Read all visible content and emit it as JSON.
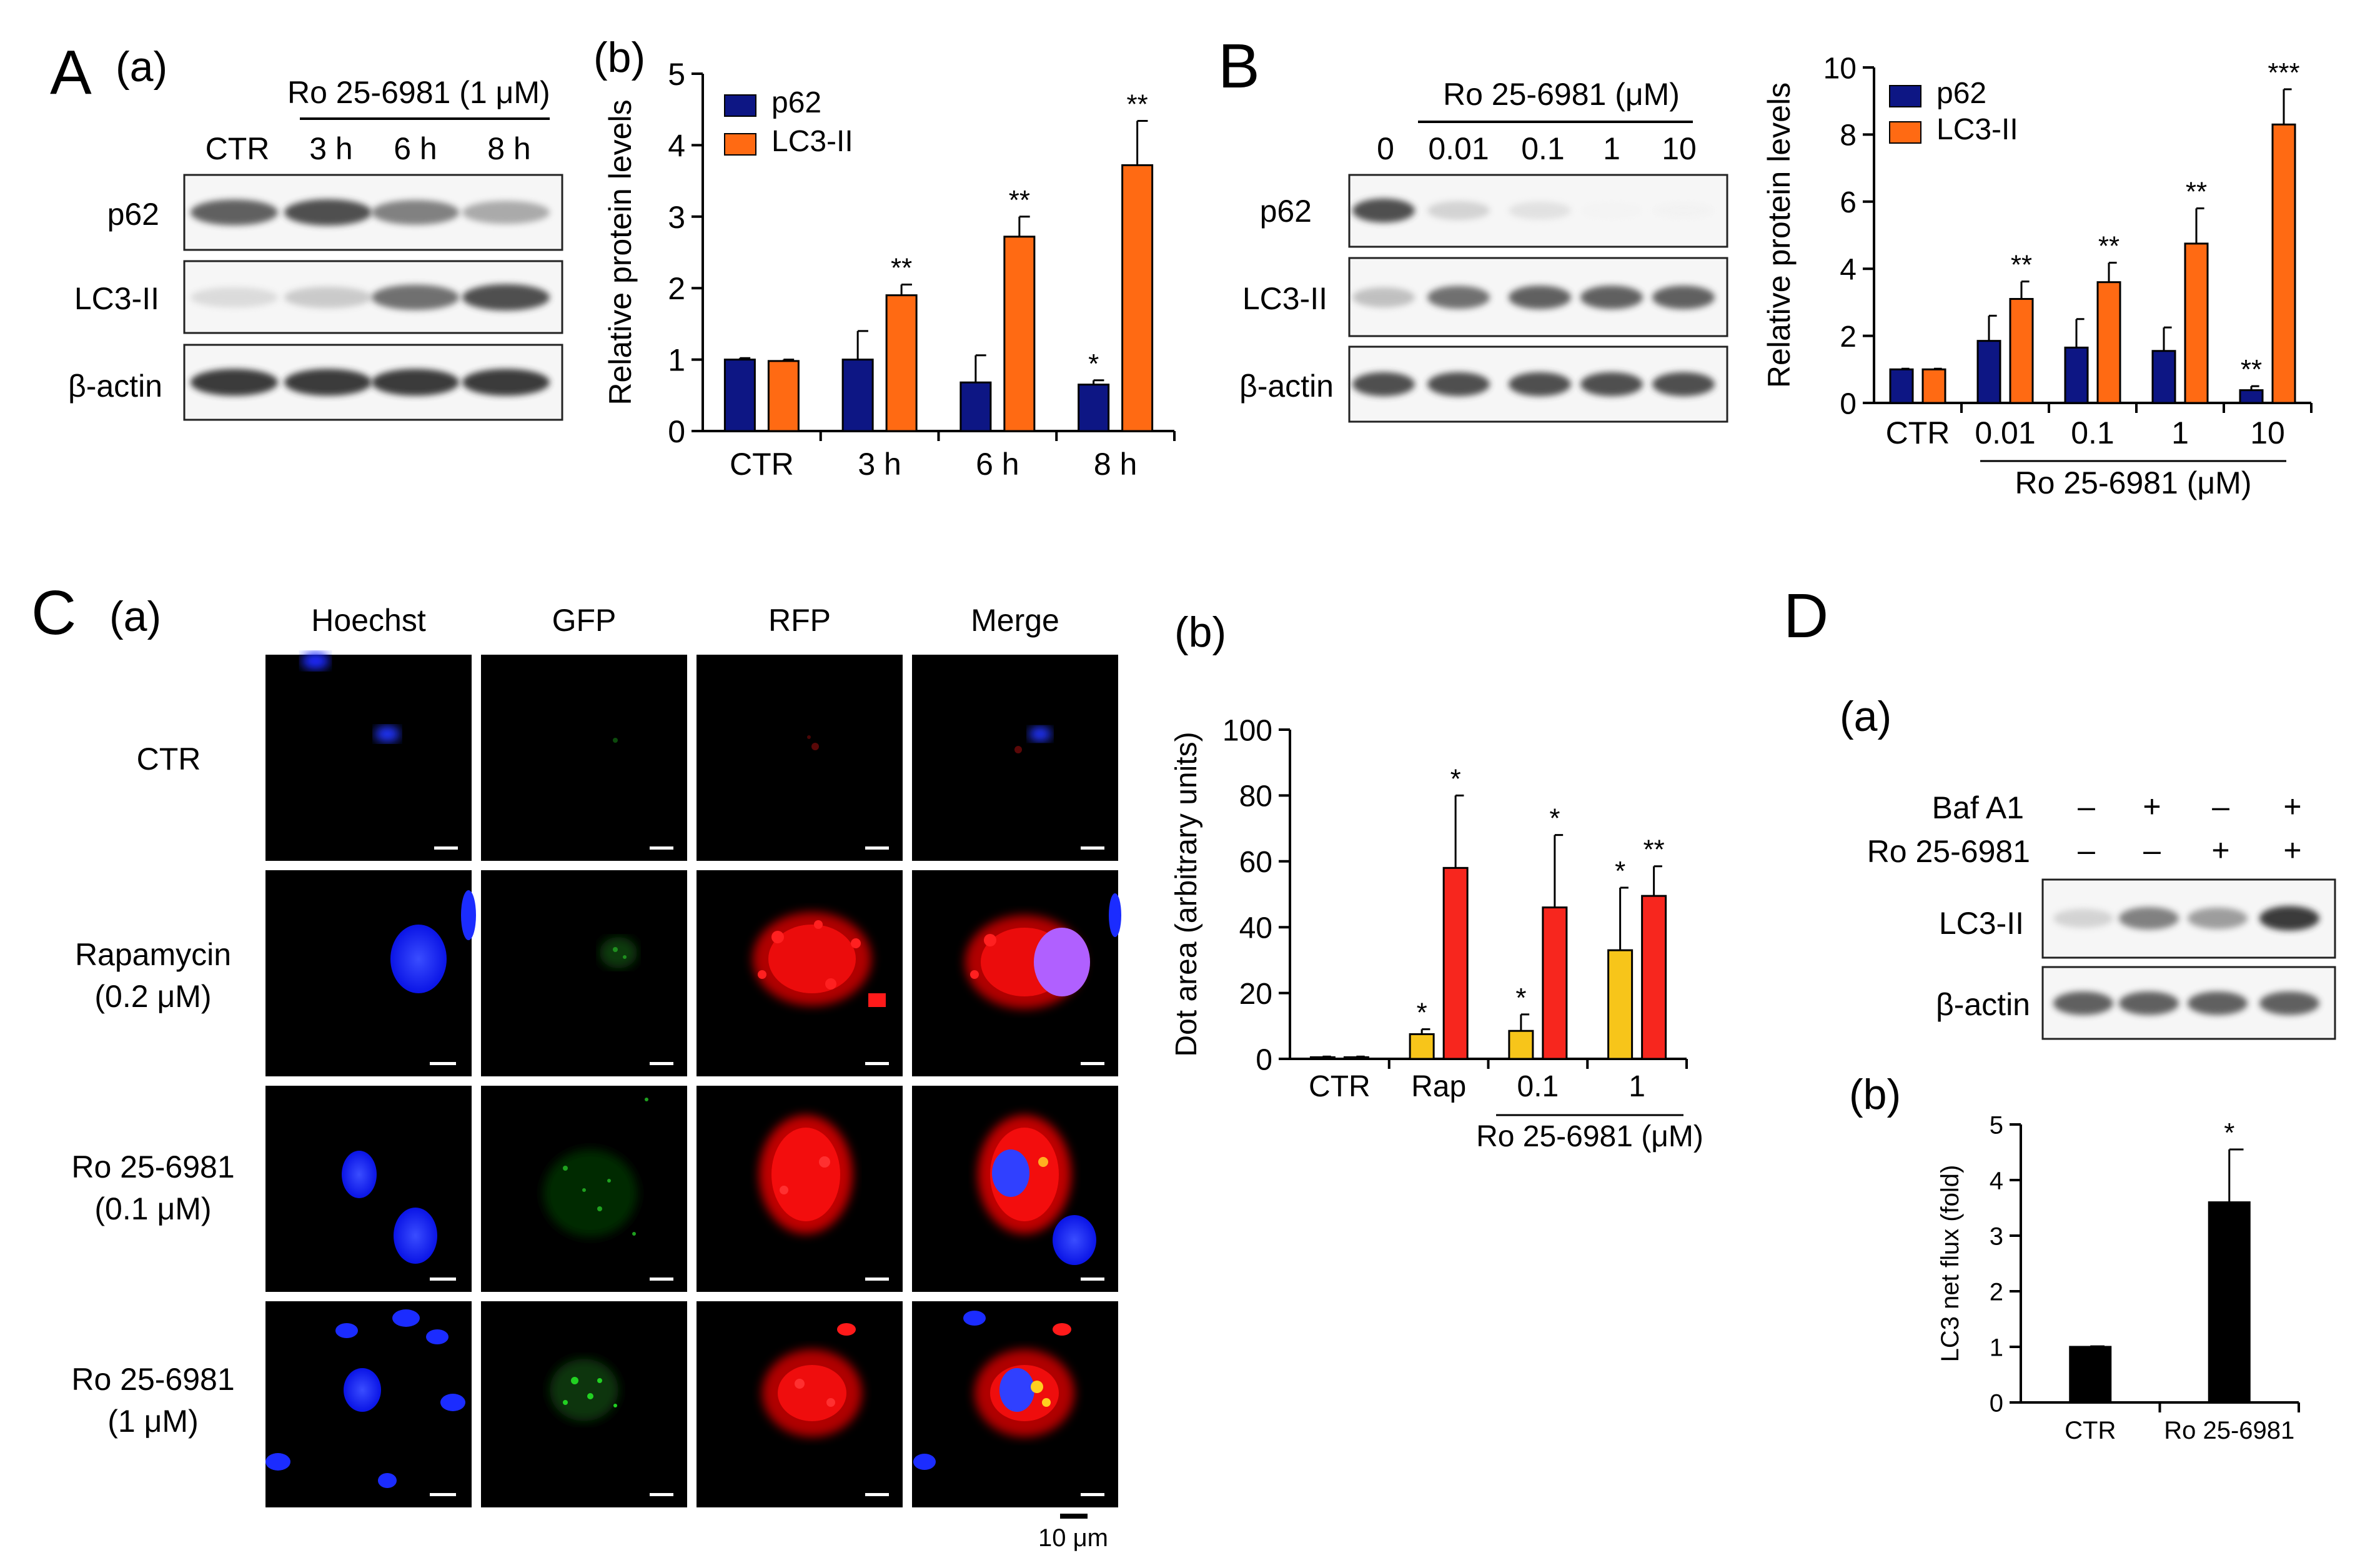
{
  "panels": {
    "A": {
      "letter": "A",
      "sub_a": "(a)",
      "sub_b": "(b)",
      "treatment": "Ro 25-6981 (1 μM)",
      "lanes": [
        "CTR",
        "3 h",
        "6 h",
        "8 h"
      ],
      "rows": [
        "p62",
        "LC3-II",
        "β-actin"
      ],
      "band_intensity": {
        "p62": [
          0.85,
          0.9,
          0.75,
          0.6
        ],
        "LC3-II": [
          0.35,
          0.45,
          0.8,
          0.9
        ],
        "β-actin": [
          0.95,
          0.95,
          0.95,
          0.95
        ]
      }
    },
    "B": {
      "letter": "B",
      "treatment": "Ro 25-6981 (μM)",
      "lanes": [
        "0",
        "0.01",
        "0.1",
        "1",
        "10"
      ],
      "rows": [
        "p62",
        "LC3-II",
        "β-actin"
      ],
      "band_intensity": {
        "p62": [
          0.9,
          0.4,
          0.3,
          0.05,
          0.08
        ],
        "LC3-II": [
          0.5,
          0.8,
          0.85,
          0.85,
          0.85
        ],
        "β-actin": [
          0.9,
          0.9,
          0.9,
          0.9,
          0.9
        ]
      },
      "group_label": "Ro 25-6981 (μM)"
    },
    "C": {
      "letter": "C",
      "sub_a": "(a)",
      "sub_b": "(b)",
      "channels": [
        "Hoechst",
        "GFP",
        "RFP",
        "Merge"
      ],
      "conditions": [
        {
          "line1": "CTR",
          "line2": ""
        },
        {
          "line1": "Rapamycin",
          "line2": "(0.2 μM)"
        },
        {
          "line1": "Ro 25-6981",
          "line2": "(0.1 μM)"
        },
        {
          "line1": "Ro 25-6981",
          "line2": "(1 μM)"
        }
      ],
      "scale_bar": "10 μm",
      "group_label": "Ro 25-6981 (μM)"
    },
    "D": {
      "letter": "D",
      "sub_a": "(a)",
      "sub_b": "(b)",
      "conditions": [
        {
          "name": "Baf A1",
          "marks": [
            "–",
            "+",
            "–",
            "+"
          ]
        },
        {
          "name": "Ro 25-6981",
          "marks": [
            "–",
            "–",
            "+",
            "+"
          ]
        }
      ],
      "rows": [
        "LC3-II",
        "β-actin"
      ],
      "band_intensity": {
        "LC3-II": [
          0.4,
          0.75,
          0.65,
          0.95
        ],
        "β-actin": [
          0.85,
          0.85,
          0.85,
          0.85
        ]
      }
    }
  },
  "chart_data": [
    {
      "id": "A-b",
      "type": "bar",
      "ylabel": "Relative protein levels",
      "ylim": [
        0,
        5
      ],
      "yticks": [
        0,
        1,
        2,
        3,
        4,
        5
      ],
      "categories": [
        "CTR",
        "3 h",
        "6 h",
        "8 h"
      ],
      "series": [
        {
          "name": "p62",
          "color": "#0d1684",
          "values": [
            1.0,
            1.0,
            0.68,
            0.65
          ],
          "errors": [
            0.02,
            0.4,
            0.38,
            0.06
          ],
          "sig": [
            "",
            "",
            "",
            "*"
          ]
        },
        {
          "name": "LC3-II",
          "color": "#ff6a13",
          "values": [
            0.98,
            1.9,
            2.72,
            3.72
          ],
          "errors": [
            0.02,
            0.15,
            0.28,
            0.62
          ],
          "sig": [
            "",
            "**",
            "**",
            "**"
          ]
        }
      ]
    },
    {
      "id": "B-chart",
      "type": "bar",
      "ylabel": "Relative protein levels",
      "ylim": [
        0,
        10
      ],
      "yticks": [
        0,
        2,
        4,
        6,
        8,
        10
      ],
      "categories": [
        "CTR",
        "0.01",
        "0.1",
        "1",
        "10"
      ],
      "xlabel": "Ro 25-6981 (μM)",
      "series": [
        {
          "name": "p62",
          "color": "#0d1684",
          "values": [
            1.0,
            1.85,
            1.65,
            1.55,
            0.38
          ],
          "errors": [
            0.02,
            0.75,
            0.85,
            0.7,
            0.12
          ],
          "sig": [
            "",
            "",
            "",
            "",
            "**"
          ]
        },
        {
          "name": "LC3-II",
          "color": "#ff6a13",
          "values": [
            1.0,
            3.1,
            3.6,
            4.75,
            8.3
          ],
          "errors": [
            0.02,
            0.52,
            0.58,
            1.05,
            1.05
          ],
          "sig": [
            "",
            "**",
            "**",
            "**",
            "***"
          ]
        }
      ]
    },
    {
      "id": "C-b",
      "type": "bar",
      "ylabel": "Dot area (arbitrary units)",
      "ylim": [
        0,
        100
      ],
      "yticks": [
        0,
        20,
        40,
        60,
        80,
        100
      ],
      "categories": [
        "CTR",
        "Rap",
        "0.1",
        "1"
      ],
      "xlabel": "Ro 25-6981 (μM)",
      "series": [
        {
          "name": "GFP",
          "color": "#f7c51a",
          "values": [
            0.5,
            7.5,
            8.5,
            33
          ],
          "errors": [
            0.2,
            1.5,
            5,
            19
          ],
          "sig": [
            "",
            "*",
            "*",
            "*"
          ]
        },
        {
          "name": "RFP",
          "color": "#f7261e",
          "values": [
            0.5,
            58,
            46,
            49.5
          ],
          "errors": [
            0.2,
            22,
            22,
            9
          ],
          "sig": [
            "",
            "*",
            "*",
            "**"
          ]
        }
      ]
    },
    {
      "id": "D-b",
      "type": "bar",
      "ylabel": "LC3 net flux (fold)",
      "ylim": [
        0,
        5
      ],
      "yticks": [
        0,
        1,
        2,
        3,
        4,
        5
      ],
      "categories": [
        "CTR",
        "Ro 25-6981"
      ],
      "series": [
        {
          "name": "LC3 net flux",
          "color": "#000000",
          "values": [
            1.0,
            3.6
          ],
          "errors": [
            0.01,
            0.95
          ],
          "sig": [
            "",
            "*"
          ]
        }
      ]
    }
  ]
}
